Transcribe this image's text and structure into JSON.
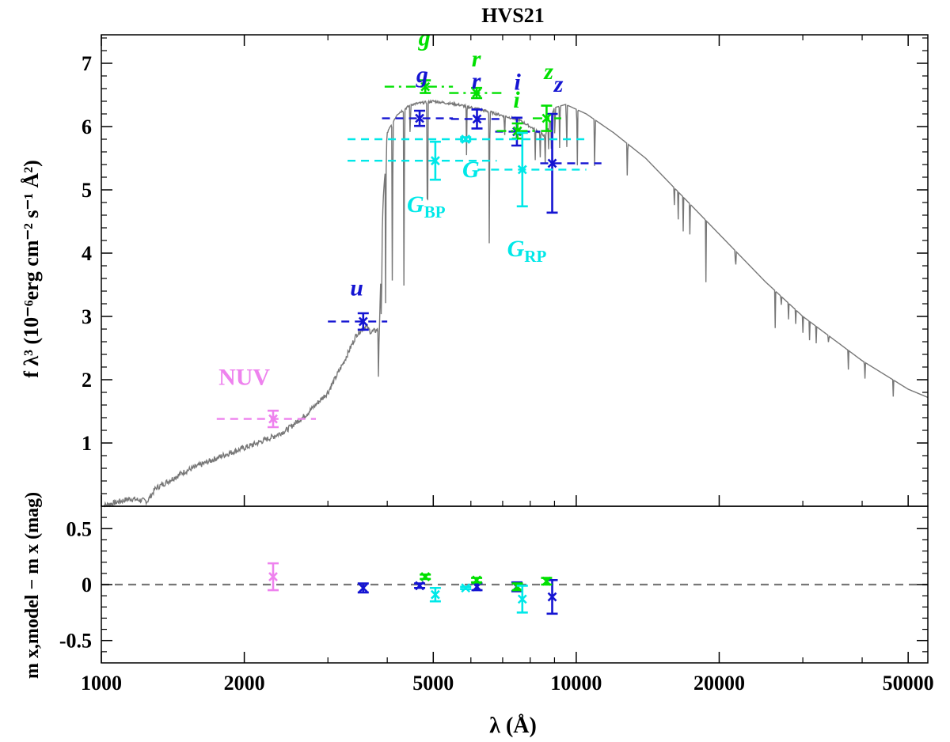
{
  "chart_data": {
    "type": "scatter",
    "title": "HVS21",
    "xlabel": "λ (Å)",
    "x_scale": "log",
    "xlim": [
      1000,
      55000
    ],
    "x_ticks": [
      1000,
      2000,
      5000,
      10000,
      20000,
      50000
    ],
    "x_tick_labels": [
      "1000",
      "2000",
      "5000",
      "10000",
      "20000",
      "50000"
    ],
    "top_panel": {
      "ylabel": "f λ³ (10⁻⁶erg cm⁻² s⁻¹ Å²)",
      "ylim": [
        0,
        7.45
      ],
      "y_ticks": [
        1,
        2,
        3,
        4,
        5,
        6,
        7
      ],
      "y_tick_labels": [
        "1",
        "2",
        "3",
        "4",
        "5",
        "6",
        "7"
      ]
    },
    "bottom_panel": {
      "ylabel": "m x,model − m x (mag)",
      "ylim": [
        -0.7,
        0.7
      ],
      "y_ticks": [
        0.5,
        0,
        -0.5
      ],
      "y_tick_labels": [
        "0.5",
        "0",
        "-0.5"
      ],
      "reference_line": 0
    },
    "colors": {
      "model": "#777777",
      "GALEX": "#ee82ee",
      "SDSS": "#1414d2",
      "PanSTARRS": "#00e000",
      "Gaia": "#00e8e8",
      "zero_line": "#777777"
    },
    "model_anchors": [
      [
        1000,
        0.0
      ],
      [
        1150,
        0.12
      ],
      [
        1250,
        0.08
      ],
      [
        1300,
        0.28
      ],
      [
        1500,
        0.55
      ],
      [
        1800,
        0.8
      ],
      [
        2100,
        0.98
      ],
      [
        2300,
        1.1
      ],
      [
        2450,
        1.2
      ],
      [
        2700,
        1.45
      ],
      [
        3000,
        1.8
      ],
      [
        3250,
        2.3
      ],
      [
        3450,
        2.72
      ],
      [
        3600,
        2.85
      ],
      [
        3700,
        2.75
      ],
      [
        3850,
        2.8
      ],
      [
        3920,
        4.8
      ],
      [
        4000,
        5.9
      ],
      [
        4200,
        6.2
      ],
      [
        4500,
        6.35
      ],
      [
        5000,
        6.4
      ],
      [
        5600,
        6.35
      ],
      [
        6200,
        6.28
      ],
      [
        6800,
        6.2
      ],
      [
        7600,
        6.1
      ],
      [
        8200,
        5.95
      ],
      [
        8600,
        5.85
      ],
      [
        9000,
        6.3
      ],
      [
        9500,
        6.35
      ],
      [
        10500,
        6.2
      ],
      [
        12000,
        5.9
      ],
      [
        14000,
        5.5
      ],
      [
        16000,
        5.05
      ],
      [
        20000,
        4.3
      ],
      [
        25000,
        3.55
      ],
      [
        30000,
        3.0
      ],
      [
        40000,
        2.3
      ],
      [
        50000,
        1.85
      ],
      [
        55000,
        1.72
      ]
    ],
    "model_absorption_lines": [
      [
        3835,
        0.9
      ],
      [
        3889,
        1.3
      ],
      [
        3970,
        2.4
      ],
      [
        4102,
        3.3
      ],
      [
        4340,
        3.6
      ],
      [
        4471,
        0.6
      ],
      [
        4861,
        3.1
      ],
      [
        5876,
        0.8
      ],
      [
        6563,
        2.4
      ],
      [
        7065,
        0.4
      ],
      [
        8200,
        0.5
      ],
      [
        8400,
        0.4
      ],
      [
        8600,
        0.5
      ],
      [
        8750,
        0.45
      ],
      [
        8860,
        0.5
      ],
      [
        9015,
        0.6
      ],
      [
        9230,
        0.7
      ],
      [
        9546,
        0.9
      ],
      [
        10049,
        1.0
      ],
      [
        10938,
        1.0
      ],
      [
        12818,
        1.1
      ],
      [
        16100,
        0.35
      ],
      [
        16400,
        0.45
      ],
      [
        16800,
        0.55
      ],
      [
        17360,
        0.7
      ],
      [
        18751,
        1.0
      ],
      [
        21655,
        0.8
      ],
      [
        26252,
        0.7
      ],
      [
        27000,
        0.3
      ],
      [
        28000,
        0.3
      ],
      [
        29000,
        0.3
      ],
      [
        30000,
        0.3
      ],
      [
        31000,
        0.3
      ],
      [
        32000,
        0.3
      ],
      [
        34000,
        0.3
      ],
      [
        37395,
        0.35
      ],
      [
        40512,
        0.55
      ],
      [
        46525,
        0.3
      ]
    ],
    "photometry": [
      {
        "label": "NUV",
        "group": "GALEX",
        "lambda": 2300,
        "lambda_lo": 1750,
        "lambda_hi": 2830,
        "flux": 1.38,
        "flux_err": 0.13,
        "resid": 0.07,
        "resid_err": 0.12,
        "line": "dash"
      },
      {
        "label": "u",
        "group": "SDSS",
        "lambda": 3560,
        "lambda_lo": 3000,
        "lambda_hi": 4000,
        "flux": 2.92,
        "flux_err": 0.13,
        "resid": -0.03,
        "resid_err": 0.04,
        "line": "dash"
      },
      {
        "label": "g",
        "group": "SDSS",
        "lambda": 4680,
        "lambda_lo": 3900,
        "lambda_hi": 5500,
        "flux": 6.13,
        "flux_err": 0.12,
        "resid": -0.01,
        "resid_err": 0.02,
        "line": "dash"
      },
      {
        "label": "r",
        "group": "SDSS",
        "lambda": 6180,
        "lambda_lo": 5450,
        "lambda_hi": 7000,
        "flux": 6.12,
        "flux_err": 0.15,
        "resid": -0.02,
        "resid_err": 0.03,
        "line": "dash"
      },
      {
        "label": "i",
        "group": "SDSS",
        "lambda": 7500,
        "lambda_lo": 6750,
        "lambda_hi": 8400,
        "flux": 5.92,
        "flux_err": 0.22,
        "resid": -0.02,
        "resid_err": 0.04,
        "line": "dash"
      },
      {
        "label": "z",
        "group": "SDSS",
        "lambda": 8900,
        "lambda_lo": 8400,
        "lambda_hi": 11300,
        "flux": 5.42,
        "flux_err": 0.78,
        "resid": -0.11,
        "resid_err": 0.15,
        "line": "dash"
      },
      {
        "label": "g",
        "group": "PanSTARRS",
        "lambda": 4810,
        "lambda_lo": 3950,
        "lambda_hi": 5500,
        "flux": 6.63,
        "flux_err": 0.1,
        "resid": 0.07,
        "resid_err": 0.02,
        "line": "dashdot"
      },
      {
        "label": "r",
        "group": "PanSTARRS",
        "lambda": 6170,
        "lambda_lo": 5400,
        "lambda_hi": 7050,
        "flux": 6.53,
        "flux_err": 0.08,
        "resid": 0.04,
        "resid_err": 0.02,
        "line": "dashdot"
      },
      {
        "label": "i",
        "group": "PanSTARRS",
        "lambda": 7520,
        "lambda_lo": 6800,
        "lambda_hi": 8300,
        "flux": 5.93,
        "flux_err": 0.12,
        "resid": -0.02,
        "resid_err": 0.03,
        "line": "dashdot"
      },
      {
        "label": "z",
        "group": "PanSTARRS",
        "lambda": 8660,
        "lambda_lo": 8100,
        "lambda_hi": 9300,
        "flux": 6.13,
        "flux_err": 0.2,
        "resid": 0.03,
        "resid_err": 0.03,
        "line": "dashdot"
      },
      {
        "label": "G_BP",
        "group": "Gaia",
        "lambda": 5050,
        "lambda_lo": 3300,
        "lambda_hi": 6800,
        "flux": 5.46,
        "flux_err": 0.3,
        "resid": -0.09,
        "resid_err": 0.06,
        "line": "dash"
      },
      {
        "label": "G",
        "group": "Gaia",
        "lambda": 5850,
        "lambda_lo": 3300,
        "lambda_hi": 10500,
        "flux": 5.8,
        "flux_err": 0.03,
        "resid": -0.03,
        "resid_err": 0.01,
        "line": "dash"
      },
      {
        "label": "G_RP",
        "group": "Gaia",
        "lambda": 7700,
        "lambda_lo": 6200,
        "lambda_hi": 10500,
        "flux": 5.32,
        "flux_err": 0.58,
        "resid": -0.13,
        "resid_err": 0.12,
        "line": "dash"
      }
    ],
    "band_labels": [
      {
        "text": "NUV",
        "group": "GALEX",
        "lambda": 2000,
        "flux": 1.92,
        "sub": ""
      },
      {
        "text": "u",
        "group": "SDSS",
        "lambda": 3450,
        "flux": 3.33,
        "sub": "",
        "italic": true
      },
      {
        "text": "g",
        "group": "PanSTARRS",
        "lambda": 4790,
        "flux": 7.28,
        "sub": "",
        "italic": true
      },
      {
        "text": "g",
        "group": "SDSS",
        "lambda": 4740,
        "flux": 6.7,
        "sub": "",
        "italic": true
      },
      {
        "text": "r",
        "group": "PanSTARRS",
        "lambda": 6160,
        "flux": 6.95,
        "sub": "",
        "italic": true
      },
      {
        "text": "r",
        "group": "SDSS",
        "lambda": 6160,
        "flux": 6.6,
        "sub": "",
        "italic": true
      },
      {
        "text": "i",
        "group": "SDSS",
        "lambda": 7520,
        "flux": 6.58,
        "sub": "",
        "italic": true
      },
      {
        "text": "i",
        "group": "PanSTARRS",
        "lambda": 7490,
        "flux": 6.3,
        "sub": "",
        "italic": true
      },
      {
        "text": "z",
        "group": "PanSTARRS",
        "lambda": 8750,
        "flux": 6.75,
        "sub": "",
        "italic": true
      },
      {
        "text": "z",
        "group": "SDSS",
        "lambda": 9180,
        "flux": 6.55,
        "sub": "",
        "italic": true
      },
      {
        "text": "G",
        "group": "Gaia",
        "lambda": 6000,
        "flux": 5.2,
        "sub": "",
        "italic": true
      },
      {
        "text": "G",
        "group": "Gaia",
        "lambda": 4830,
        "flux": 4.65,
        "sub": "BP",
        "italic": true
      },
      {
        "text": "G",
        "group": "Gaia",
        "lambda": 7870,
        "flux": 3.95,
        "sub": "RP",
        "italic": true
      }
    ]
  }
}
